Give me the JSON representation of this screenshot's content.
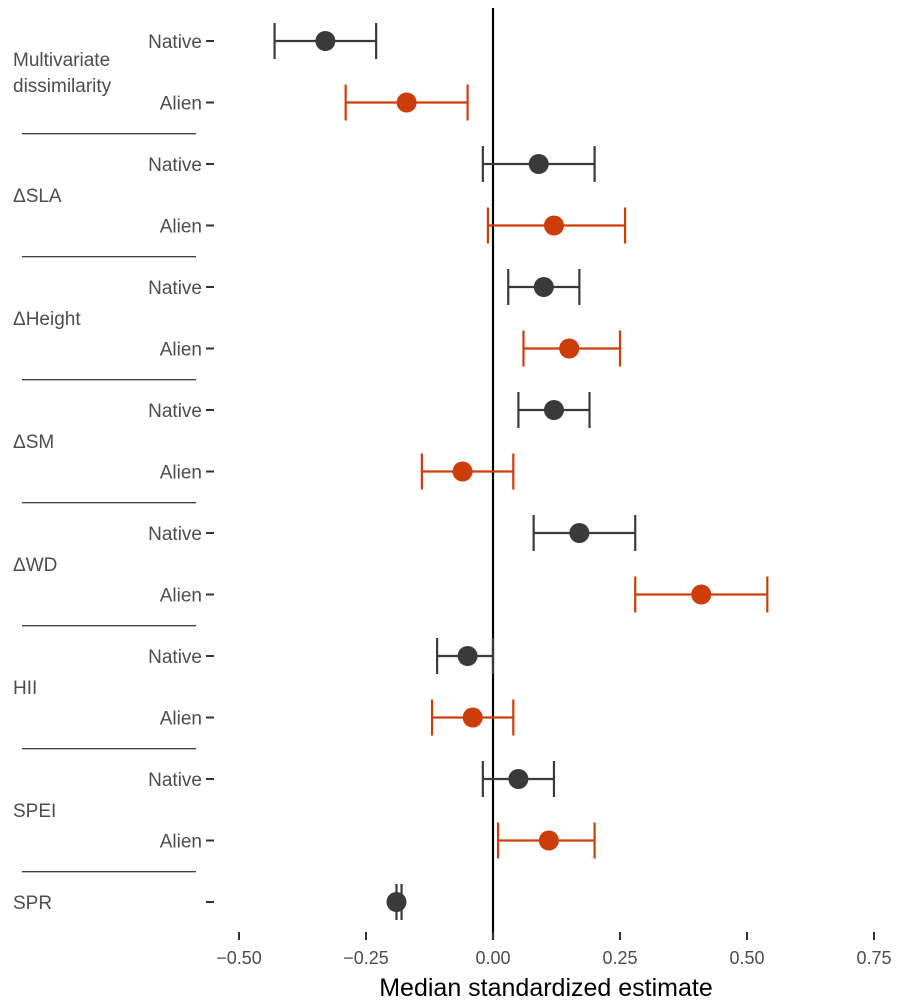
{
  "chart_data": {
    "type": "scatter",
    "subtype": "forest-plot (point estimate with interval)",
    "xlabel": "Median standardized estimate",
    "ylabel": "",
    "xlim": [
      -0.55,
      0.78
    ],
    "x_ticks": [
      -0.5,
      -0.25,
      0.0,
      0.25,
      0.5,
      0.75
    ],
    "x_tick_labels": [
      "−0.50",
      "−0.25",
      "0.00",
      "0.25",
      "0.50",
      "0.75"
    ],
    "reference_line_x": 0,
    "grid": false,
    "legend": "none",
    "colors": {
      "Native": "#3a3a3a",
      "Alien": "#cc3d0a"
    },
    "groups": [
      {
        "label": "Multivariate dissimilarity",
        "label_lines": [
          "Multivariate",
          "dissimilarity"
        ],
        "rows": [
          {
            "status": "Native",
            "estimate": -0.33,
            "lower": -0.43,
            "upper": -0.23
          },
          {
            "status": "Alien",
            "estimate": -0.17,
            "lower": -0.29,
            "upper": -0.05
          }
        ]
      },
      {
        "label": "ΔSLA",
        "label_lines": [
          "ΔSLA"
        ],
        "rows": [
          {
            "status": "Native",
            "estimate": 0.09,
            "lower": -0.02,
            "upper": 0.2
          },
          {
            "status": "Alien",
            "estimate": 0.12,
            "lower": -0.01,
            "upper": 0.26
          }
        ]
      },
      {
        "label": "ΔHeight",
        "label_lines": [
          "ΔHeight"
        ],
        "rows": [
          {
            "status": "Native",
            "estimate": 0.1,
            "lower": 0.03,
            "upper": 0.17
          },
          {
            "status": "Alien",
            "estimate": 0.15,
            "lower": 0.06,
            "upper": 0.25
          }
        ]
      },
      {
        "label": "ΔSM",
        "label_lines": [
          "ΔSM"
        ],
        "rows": [
          {
            "status": "Native",
            "estimate": 0.12,
            "lower": 0.05,
            "upper": 0.19
          },
          {
            "status": "Alien",
            "estimate": -0.06,
            "lower": -0.14,
            "upper": 0.04
          }
        ]
      },
      {
        "label": "ΔWD",
        "label_lines": [
          "ΔWD"
        ],
        "rows": [
          {
            "status": "Native",
            "estimate": 0.17,
            "lower": 0.08,
            "upper": 0.28
          },
          {
            "status": "Alien",
            "estimate": 0.41,
            "lower": 0.28,
            "upper": 0.54
          }
        ]
      },
      {
        "label": "HII",
        "label_lines": [
          "HII"
        ],
        "rows": [
          {
            "status": "Native",
            "estimate": -0.05,
            "lower": -0.11,
            "upper": 0.0
          },
          {
            "status": "Alien",
            "estimate": -0.04,
            "lower": -0.12,
            "upper": 0.04
          }
        ]
      },
      {
        "label": "SPEI",
        "label_lines": [
          "SPEI"
        ],
        "rows": [
          {
            "status": "Native",
            "estimate": 0.05,
            "lower": -0.02,
            "upper": 0.12
          },
          {
            "status": "Alien",
            "estimate": 0.11,
            "lower": 0.01,
            "upper": 0.2
          }
        ]
      },
      {
        "label": "SPR",
        "label_lines": [
          "SPR"
        ],
        "rows": [
          {
            "status": "",
            "estimate": -0.19,
            "lower": -0.19,
            "upper": -0.18,
            "color_key": "Native"
          }
        ]
      }
    ]
  }
}
